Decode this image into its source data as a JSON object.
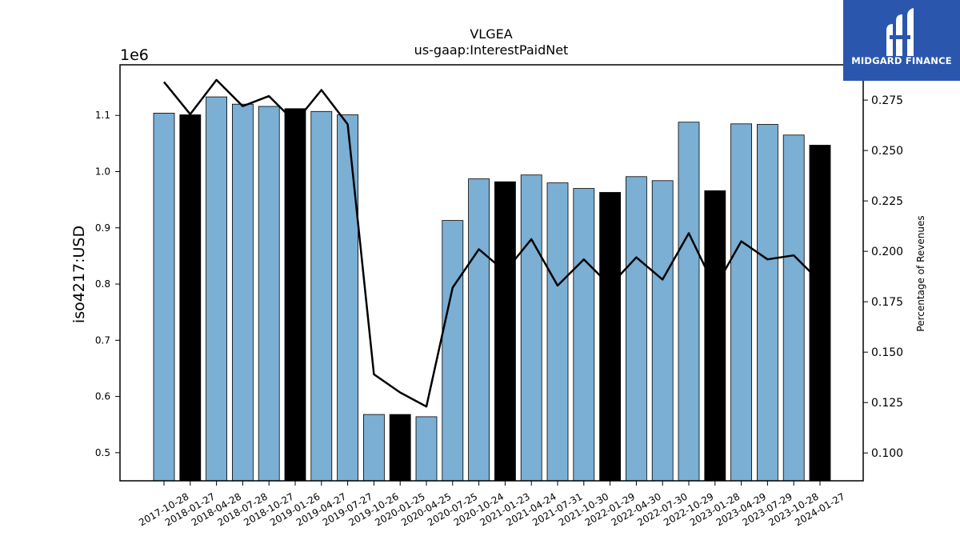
{
  "chart_data": {
    "type": "bar",
    "title": "VLGEA",
    "subtitle": "us-gaap:InterestPaidNet",
    "ylabel": "iso4217:USD",
    "ylabel_right": "Percentage of Revenues",
    "offset_label": "1e6",
    "categories": [
      "2017-10-28",
      "2018-01-27",
      "2018-04-28",
      "2018-07-28",
      "2018-10-27",
      "2019-01-26",
      "2019-04-27",
      "2019-07-27",
      "2019-10-26",
      "2020-01-25",
      "2020-04-25",
      "2020-07-25",
      "2020-10-24",
      "2021-01-23",
      "2021-04-24",
      "2021-07-31",
      "2021-10-30",
      "2022-01-29",
      "2022-04-30",
      "2022-07-30",
      "2022-10-29",
      "2023-01-28",
      "2023-04-29",
      "2023-07-29",
      "2023-10-28",
      "2024-01-27"
    ],
    "series": [
      {
        "values": [
          1.104,
          1.101,
          1.133,
          1.12,
          1.116,
          1.112,
          1.107,
          1.101,
          0.568,
          0.568,
          0.564,
          0.913,
          0.987,
          0.982,
          0.994,
          0.98,
          0.97,
          0.963,
          0.991,
          0.984,
          1.088,
          0.966,
          1.085,
          1.084,
          1.065,
          1.047
        ],
        "highlight": [
          false,
          true,
          false,
          false,
          false,
          true,
          false,
          false,
          false,
          true,
          false,
          false,
          false,
          true,
          false,
          false,
          false,
          true,
          false,
          false,
          false,
          true,
          false,
          false,
          false,
          true
        ],
        "axis": "left"
      },
      {
        "values": [
          0.284,
          0.268,
          0.285,
          0.272,
          0.277,
          0.264,
          0.28,
          0.263,
          0.139,
          0.13,
          0.123,
          0.182,
          0.201,
          0.19,
          0.206,
          0.183,
          0.196,
          0.183,
          0.197,
          0.186,
          0.209,
          0.182,
          0.205,
          0.196,
          0.198,
          0.185
        ],
        "type": "line",
        "axis": "right"
      }
    ],
    "ylim": [
      0.45,
      1.19
    ],
    "yticks": [
      0.5,
      0.6,
      0.7,
      0.8,
      0.9,
      1.0,
      1.1
    ],
    "ylim_right": [
      0.0862,
      0.2925
    ],
    "yticks_right": [
      0.1,
      0.125,
      0.15,
      0.175,
      0.2,
      0.225,
      0.25,
      0.275
    ],
    "colors": {
      "bar": "#7bafd4",
      "bar_highlight": "#000000",
      "line": "#000000"
    },
    "grid": false,
    "legend": "none"
  },
  "logo": {
    "text": "MIDGARD FINANCE",
    "color": "#2a57ad"
  }
}
